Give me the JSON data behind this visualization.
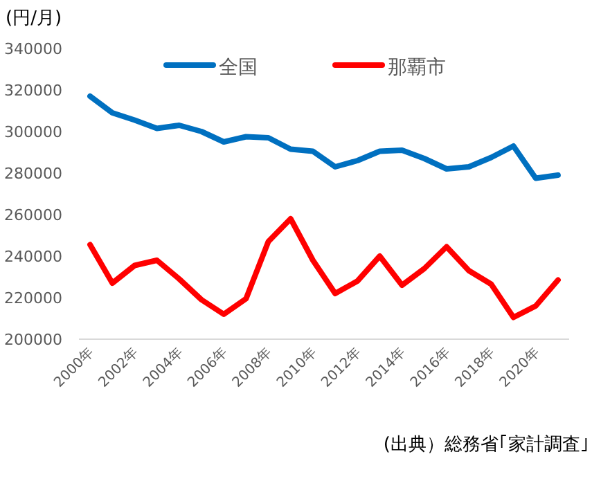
{
  "chart_data": {
    "type": "line",
    "ylabel": "(円/月)",
    "categories": [
      "2000年",
      null,
      "2002年",
      null,
      "2004年",
      null,
      "2006年",
      null,
      "2008年",
      null,
      "2010年",
      null,
      "2012年",
      null,
      "2014年",
      null,
      "2016年",
      null,
      "2018年",
      null,
      "2020年",
      null
    ],
    "series": [
      {
        "name": "全国",
        "color": "#0070c0",
        "values": [
          317000,
          309000,
          305500,
          301500,
          303000,
          300000,
          295000,
          297500,
          297000,
          291500,
          290500,
          283000,
          286000,
          290500,
          291000,
          287000,
          282000,
          283000,
          287500,
          293000,
          277500,
          279000
        ]
      },
      {
        "name": "那覇市",
        "color": "#ff0000",
        "values": [
          245500,
          227000,
          235500,
          238000,
          229000,
          219000,
          212000,
          219500,
          247000,
          258000,
          238000,
          222000,
          228000,
          240000,
          226000,
          234000,
          244500,
          233000,
          226500,
          210500,
          216000,
          228500
        ]
      }
    ],
    "ylim": [
      200000,
      340000
    ],
    "yticks": [
      200000,
      220000,
      240000,
      260000,
      280000,
      300000,
      320000,
      340000
    ],
    "grid": false,
    "legend": "top",
    "marker": "none",
    "line_style": "solid",
    "annotations": [
      "(出典）総務省｢家計調査｣"
    ]
  }
}
